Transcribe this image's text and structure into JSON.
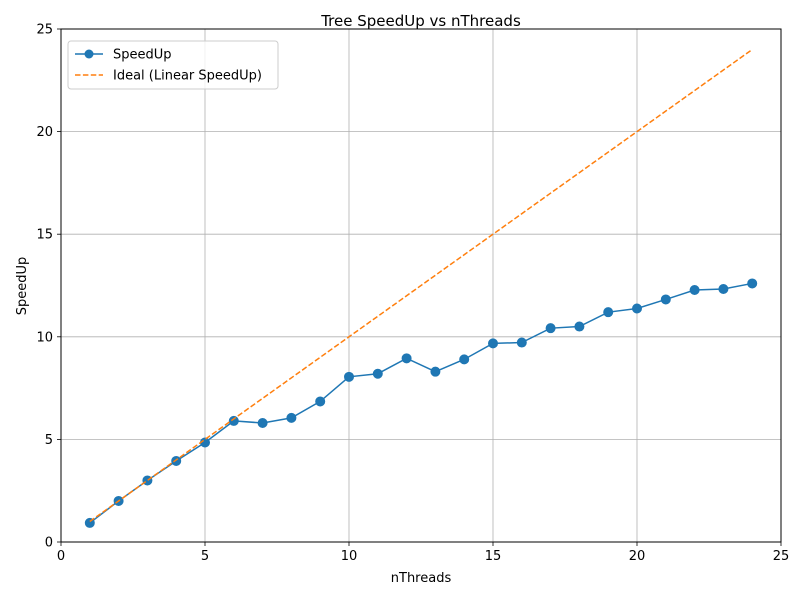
{
  "chart_data": {
    "type": "line",
    "title": "Tree SpeedUp vs nThreads",
    "xlabel": "nThreads",
    "ylabel": "SpeedUp",
    "xlim": [
      0,
      25
    ],
    "ylim": [
      0,
      25
    ],
    "xticks": [
      0,
      5,
      10,
      15,
      20,
      25
    ],
    "yticks": [
      0,
      5,
      10,
      15,
      20,
      25
    ],
    "grid": true,
    "legend_position": "top-left",
    "series": [
      {
        "name": "SpeedUp",
        "style": "line-with-markers",
        "color": "#1f77b4",
        "x": [
          1,
          2,
          3,
          4,
          5,
          6,
          7,
          8,
          9,
          10,
          11,
          12,
          13,
          14,
          15,
          16,
          17,
          18,
          19,
          20,
          21,
          22,
          23,
          24
        ],
        "y": [
          0.93,
          2.0,
          3.0,
          3.95,
          4.85,
          5.9,
          5.8,
          6.05,
          6.85,
          8.05,
          8.2,
          8.95,
          8.3,
          8.9,
          9.68,
          9.72,
          10.42,
          10.5,
          11.2,
          11.38,
          11.82,
          12.28,
          12.33,
          12.6
        ]
      },
      {
        "name": "Ideal (Linear SpeedUp)",
        "style": "dashed",
        "color": "#ff7f0e",
        "x": [
          1,
          24
        ],
        "y": [
          1,
          24
        ]
      }
    ]
  }
}
